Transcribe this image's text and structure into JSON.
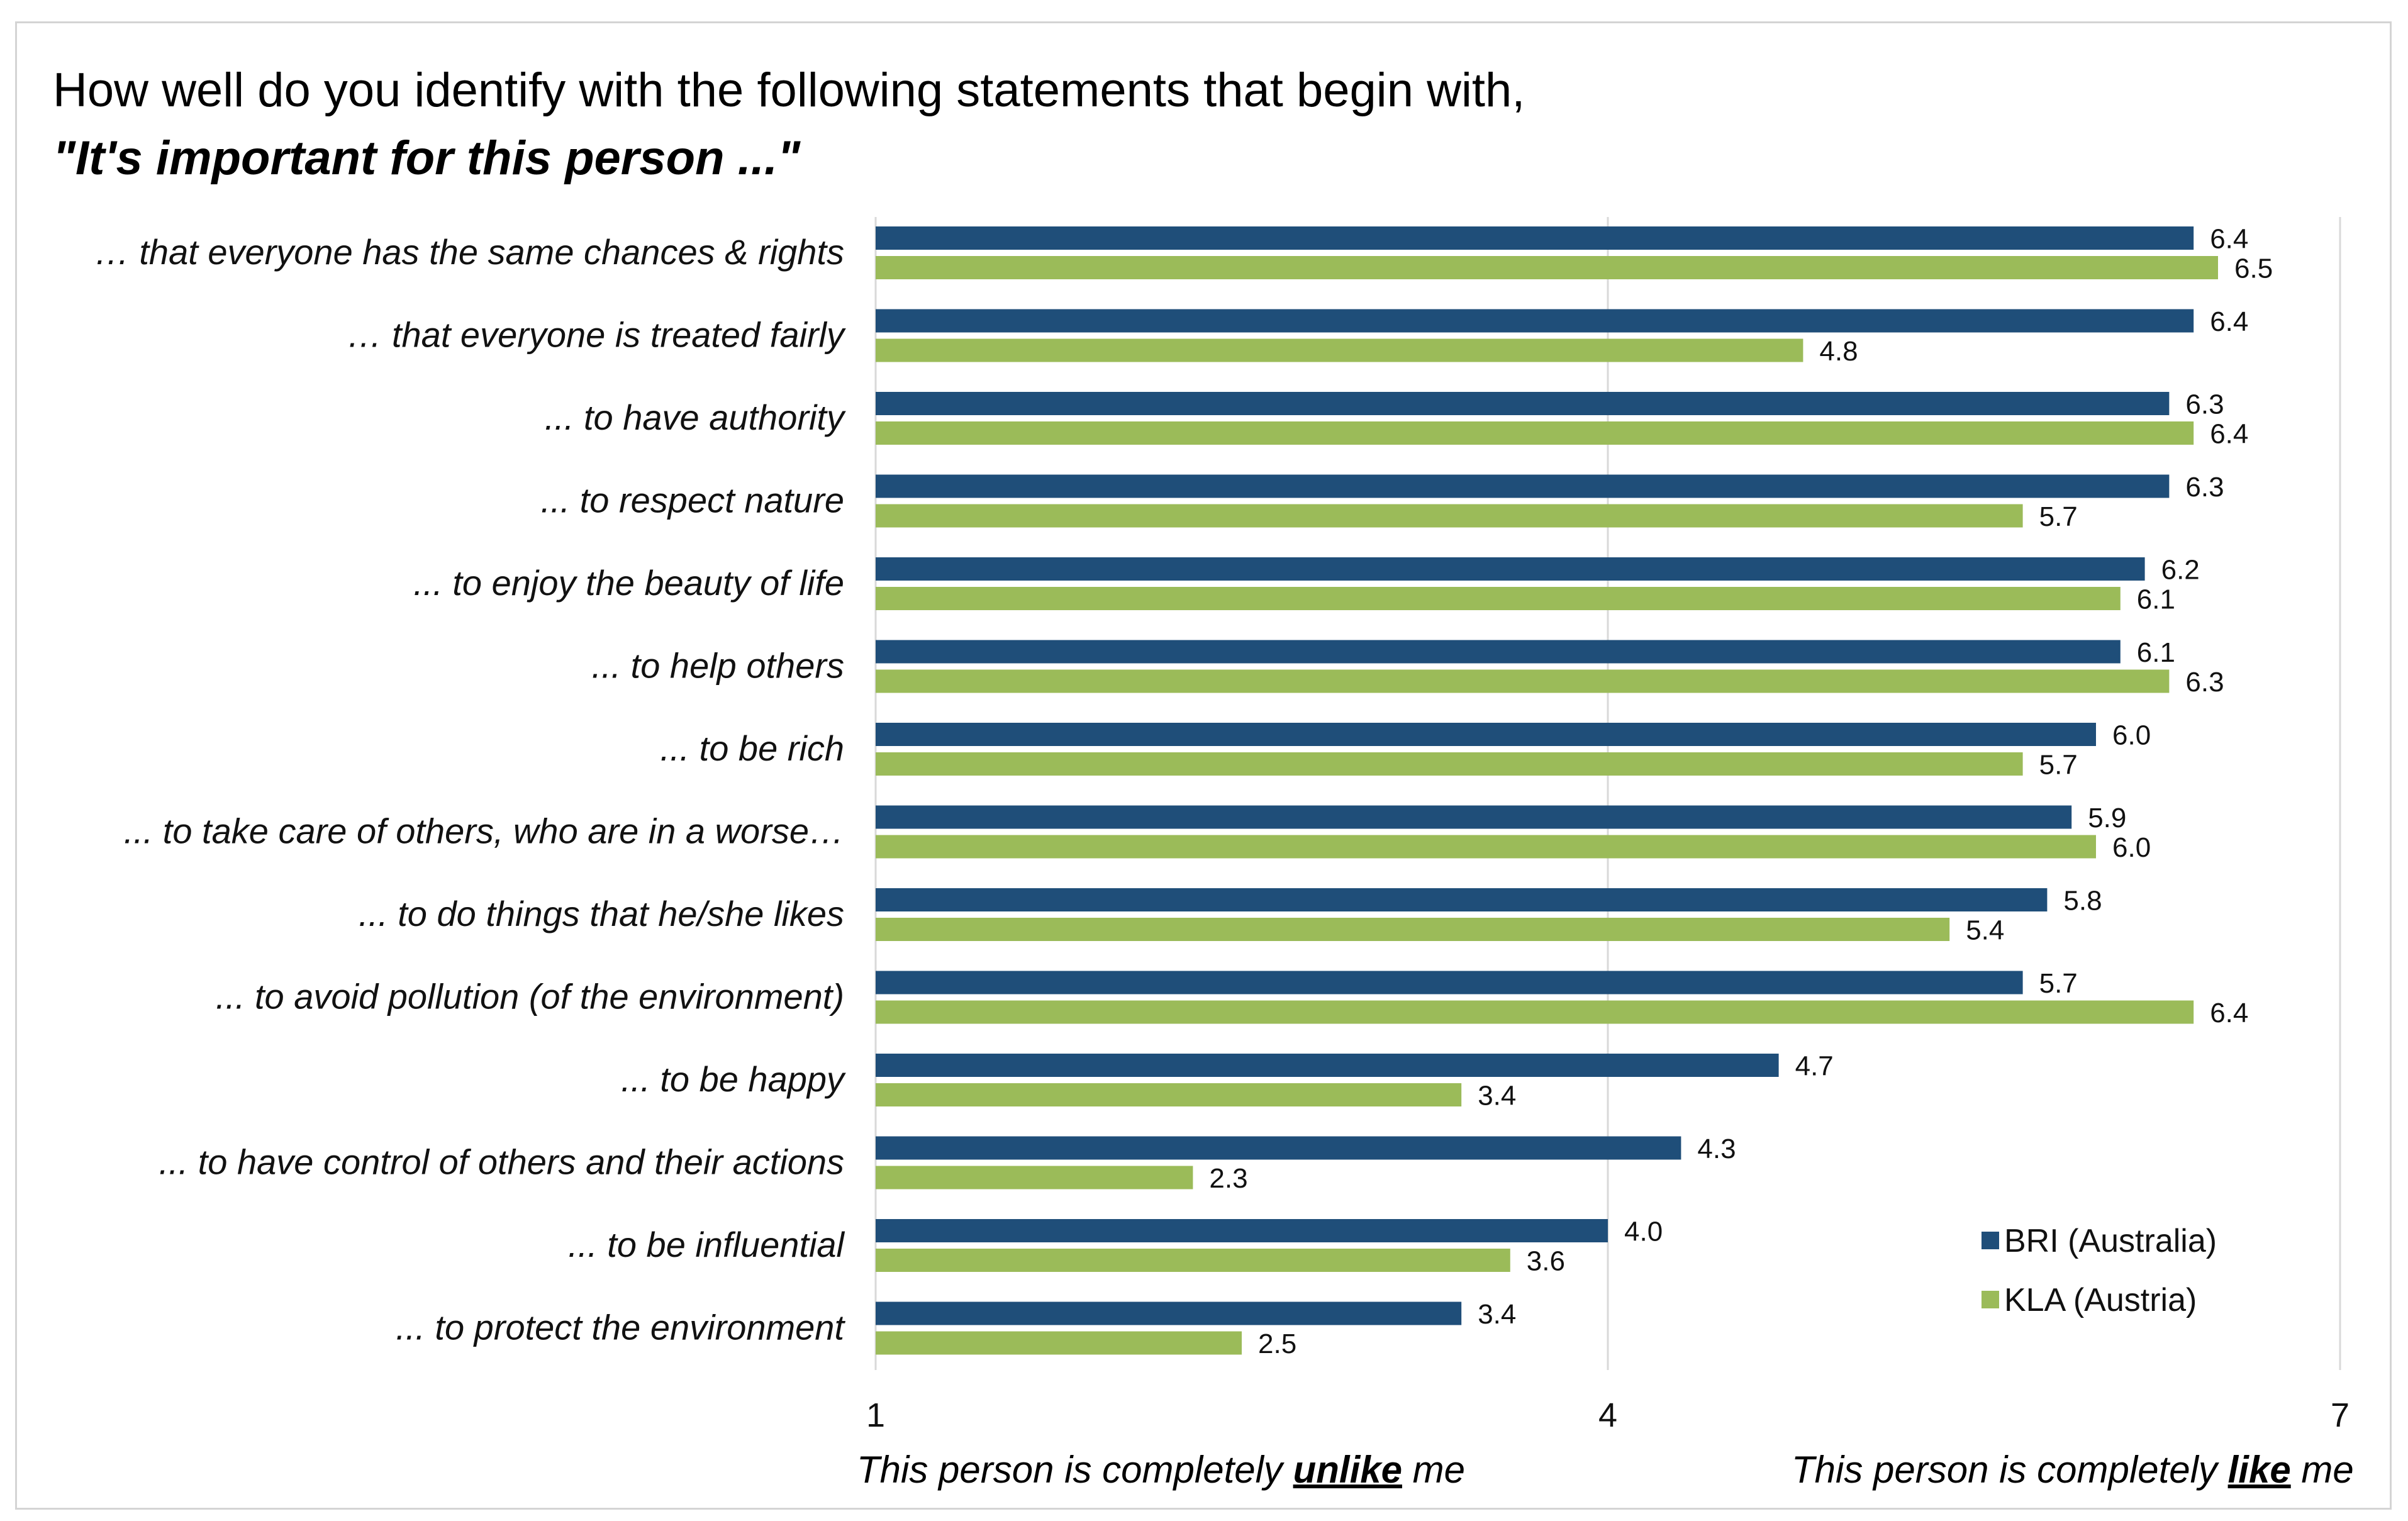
{
  "title": "How well do you identify with the following statements that begin with,",
  "subtitle": "\"It's important for this person ...\"",
  "chart_data": {
    "type": "bar",
    "orientation": "horizontal",
    "categories": [
      "… that everyone has the same chances & rights",
      "… that everyone is treated fairly",
      "... to have authority",
      "... to respect nature",
      "... to enjoy the beauty of life",
      "... to help others",
      "... to be rich",
      "... to take care of others, who are in a worse…",
      "... to do things that he/she likes",
      "... to avoid pollution (of the environment)",
      "... to be happy",
      "... to have control of others and their actions",
      "... to be influential",
      "... to protect the environment"
    ],
    "series": [
      {
        "name": "BRI (Australia)",
        "color": "#1f4e79",
        "values": [
          6.4,
          6.4,
          6.3,
          6.3,
          6.2,
          6.1,
          6.0,
          5.9,
          5.8,
          5.7,
          4.7,
          4.3,
          4.0,
          3.4
        ]
      },
      {
        "name": "KLA (Austria)",
        "color": "#9bbb59",
        "values": [
          6.5,
          4.8,
          6.4,
          5.7,
          6.1,
          6.3,
          5.7,
          6.0,
          5.4,
          6.4,
          3.4,
          2.3,
          3.6,
          2.5
        ]
      }
    ],
    "xlim": [
      1,
      7
    ],
    "xticks": [
      "1",
      "4",
      "7"
    ],
    "xlabel_left_pre": "This person is completely ",
    "xlabel_left_em": "unlike",
    "xlabel_left_post": " me",
    "xlabel_right_pre": "This person is completely ",
    "xlabel_right_em": "like",
    "xlabel_right_post": " me",
    "grid": true,
    "legend_position": "bottom-right"
  }
}
